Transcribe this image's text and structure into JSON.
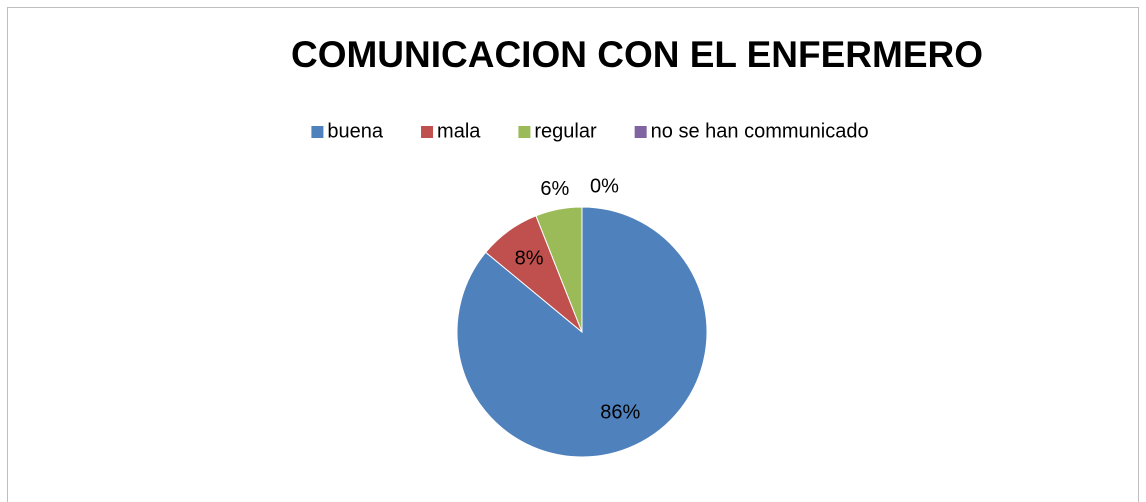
{
  "chart_data": {
    "type": "pie",
    "title": "COMUNICACION CON EL ENFERMERO",
    "categories": [
      "buena",
      "mala",
      "regular",
      "no se han communicado"
    ],
    "values": [
      86,
      8,
      6,
      0
    ],
    "value_labels": [
      "86%",
      "8%",
      "6%",
      "0%"
    ],
    "colors": [
      "#4f81bd",
      "#c0504d",
      "#9bbb59",
      "#8064a2"
    ],
    "legend": "top"
  }
}
